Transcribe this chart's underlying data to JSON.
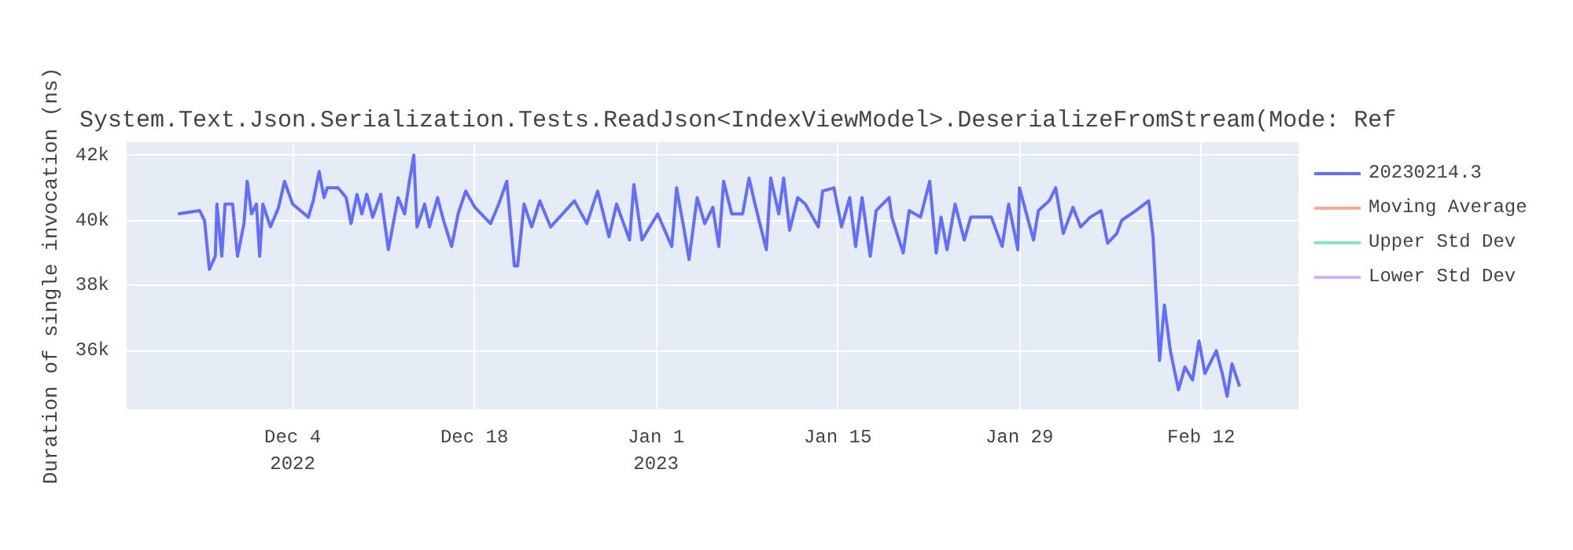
{
  "chart_data": {
    "type": "line",
    "title": "System.Text.Json.Serialization.Tests.ReadJson<IndexViewModel>.DeserializeFromStream(Mode: Ref",
    "ylabel": "Duration of single invocation (ns)",
    "xlim": [
      "2022-11-21T05:00",
      "2023-02-19T12:00"
    ],
    "xticks": [
      {
        "value": "2022-12-04",
        "label": "Dec 4\n2022"
      },
      {
        "value": "2022-12-18",
        "label": "Dec 18"
      },
      {
        "value": "2023-01-01",
        "label": "Jan 1\n2023"
      },
      {
        "value": "2023-01-15",
        "label": "Jan 15"
      },
      {
        "value": "2023-01-29",
        "label": "Jan 29"
      },
      {
        "value": "2023-02-12",
        "label": "Feb 12"
      }
    ],
    "ylim": [
      34200,
      42400
    ],
    "yticks": [
      {
        "value": 36000,
        "label": "36k"
      },
      {
        "value": 38000,
        "label": "38k"
      },
      {
        "value": 40000,
        "label": "40k"
      },
      {
        "value": 42000,
        "label": "42k"
      }
    ],
    "grid": true,
    "legend": "top right",
    "line_style": "solid",
    "series": [
      {
        "name": "20230214.3",
        "color": "#636efa",
        "x": [
          "2022-11-25T04:00",
          "2022-11-26T20:00",
          "2022-11-27T05:00",
          "2022-11-27T14:00",
          "2022-11-28T01:00",
          "2022-11-28T04:00",
          "2022-11-28T13:00",
          "2022-11-28T19:00",
          "2022-11-29T09:00",
          "2022-11-29T18:00",
          "2022-11-30T06:00",
          "2022-11-30T12:00",
          "2022-11-30T20:00",
          "2022-12-01T05:00",
          "2022-12-01T11:00",
          "2022-12-01T17:00",
          "2022-12-02T07:00",
          "2022-12-02T22:00",
          "2022-12-03T09:00",
          "2022-12-04T00:00",
          "2022-12-05T05:00",
          "2022-12-05T14:00",
          "2022-12-06T01:00",
          "2022-12-06T10:00",
          "2022-12-06T16:00",
          "2022-12-07T12:00",
          "2022-12-08T03:00",
          "2022-12-08T12:00",
          "2022-12-08T23:00",
          "2022-12-09T08:00",
          "2022-12-09T17:00",
          "2022-12-10T04:00",
          "2022-12-10T19:00",
          "2022-12-11T09:00",
          "2022-12-12T03:00",
          "2022-12-12T15:00",
          "2022-12-12T23:00",
          "2022-12-13T08:00",
          "2022-12-13T14:00",
          "2022-12-14T04:00",
          "2022-12-14T13:00",
          "2022-12-15T04:00",
          "2022-12-15T15:00",
          "2022-12-16T06:00",
          "2022-12-16T18:00",
          "2022-12-17T08:00",
          "2022-12-18T01:00",
          "2022-12-19T06:00",
          "2022-12-19T21:00",
          "2022-12-20T12:00",
          "2022-12-21T02:00",
          "2022-12-21T08:00",
          "2022-12-21T20:00",
          "2022-12-22T10:00",
          "2022-12-23T01:00",
          "2022-12-23T21:00",
          "2022-12-25T17:00",
          "2022-12-26T16:00",
          "2022-12-27T12:00",
          "2022-12-28T09:00",
          "2022-12-28T23:00",
          "2022-12-29T23:00",
          "2022-12-30T07:00",
          "2022-12-30T22:00",
          "2023-01-01T03:00",
          "2023-01-02T05:00",
          "2023-01-02T14:00",
          "2023-01-03T04:00",
          "2023-01-03T13:00",
          "2023-01-04T04:00",
          "2023-01-04T18:00",
          "2023-01-05T09:00",
          "2023-01-05T20:00",
          "2023-01-06T05:00",
          "2023-01-06T20:00",
          "2023-01-07T16:00",
          "2023-01-08T04:00",
          "2023-01-08T15:00",
          "2023-01-09T12:00",
          "2023-01-09T20:00",
          "2023-01-10T11:00",
          "2023-01-10T20:00",
          "2023-01-11T07:00",
          "2023-01-11T22:00",
          "2023-01-12T12:00",
          "2023-01-13T12:00",
          "2023-01-13T20:00",
          "2023-01-14T17:00",
          "2023-01-15T07:00",
          "2023-01-15T22:00",
          "2023-01-16T09:00",
          "2023-01-16T21:00",
          "2023-01-17T12:00",
          "2023-01-17T23:00",
          "2023-01-18T23:00",
          "2023-01-19T04:00",
          "2023-01-20T01:00",
          "2023-01-20T12:00",
          "2023-01-21T09:00",
          "2023-01-22T02:00",
          "2023-01-22T14:00",
          "2023-01-22T23:00",
          "2023-01-23T10:00",
          "2023-01-24T01:00",
          "2023-01-24T18:00",
          "2023-01-25T06:00",
          "2023-01-26T20:00",
          "2023-01-27T16:00",
          "2023-01-28T04:00",
          "2023-01-28T21:00",
          "2023-01-29T00:00",
          "2023-01-30T02:00",
          "2023-01-30T11:00",
          "2023-01-31T07:00",
          "2023-01-31T19:00",
          "2023-02-01T09:00",
          "2023-02-02T03:00",
          "2023-02-02T17:00",
          "2023-02-03T11:00",
          "2023-02-04T07:00",
          "2023-02-04T19:00",
          "2023-02-05T12:00",
          "2023-02-05T21:00",
          "2023-02-06T23:00",
          "2023-02-07T23:00",
          "2023-02-08T07:00",
          "2023-02-08T19:00",
          "2023-02-09T04:00",
          "2023-02-09T15:00",
          "2023-02-10T06:00",
          "2023-02-10T18:00",
          "2023-02-11T08:00",
          "2023-02-11T20:00",
          "2023-02-12T07:00",
          "2023-02-13T04:00",
          "2023-02-13T15:00",
          "2023-02-14T00:00",
          "2023-02-14T09:00",
          "2023-02-14T23:00"
        ],
        "values": [
          40200,
          40300,
          40000,
          38500,
          38900,
          40500,
          38900,
          40500,
          40500,
          38900,
          39900,
          41200,
          40200,
          40500,
          38900,
          40500,
          39800,
          40400,
          41200,
          40500,
          40100,
          40600,
          41500,
          40700,
          41000,
          41000,
          40700,
          39900,
          40800,
          40200,
          40800,
          40100,
          40800,
          39100,
          40700,
          40200,
          41100,
          42000,
          39800,
          40500,
          39800,
          40700,
          40000,
          39200,
          40200,
          40900,
          40400,
          39900,
          40500,
          41200,
          38600,
          38600,
          40500,
          39800,
          40600,
          39800,
          40600,
          39900,
          40900,
          39500,
          40500,
          39400,
          41100,
          39400,
          40200,
          39200,
          41000,
          39700,
          38800,
          40700,
          39900,
          40400,
          39200,
          41200,
          40200,
          40200,
          41300,
          40500,
          39100,
          41300,
          40200,
          41300,
          39700,
          40700,
          40500,
          39800,
          40900,
          41000,
          39800,
          40700,
          39200,
          40700,
          38900,
          40300,
          40700,
          40100,
          39000,
          40300,
          40100,
          41200,
          39000,
          40100,
          39100,
          40500,
          39400,
          40100,
          40100,
          39200,
          40500,
          39100,
          41000,
          39400,
          40300,
          40600,
          41000,
          39600,
          40400,
          39800,
          40100,
          40300,
          39300,
          39600,
          40000,
          40300,
          40600,
          39500,
          35700,
          37400,
          36000,
          34800,
          35500,
          35100,
          36300,
          35300,
          36000,
          35300,
          34600,
          35600,
          34900
        ]
      },
      {
        "name": "Moving Average",
        "color": "#f7aa9d"
      },
      {
        "name": "Upper Std Dev",
        "color": "#80e5ca"
      },
      {
        "name": "Lower Std Dev",
        "color": "#d5b1fc"
      }
    ]
  }
}
